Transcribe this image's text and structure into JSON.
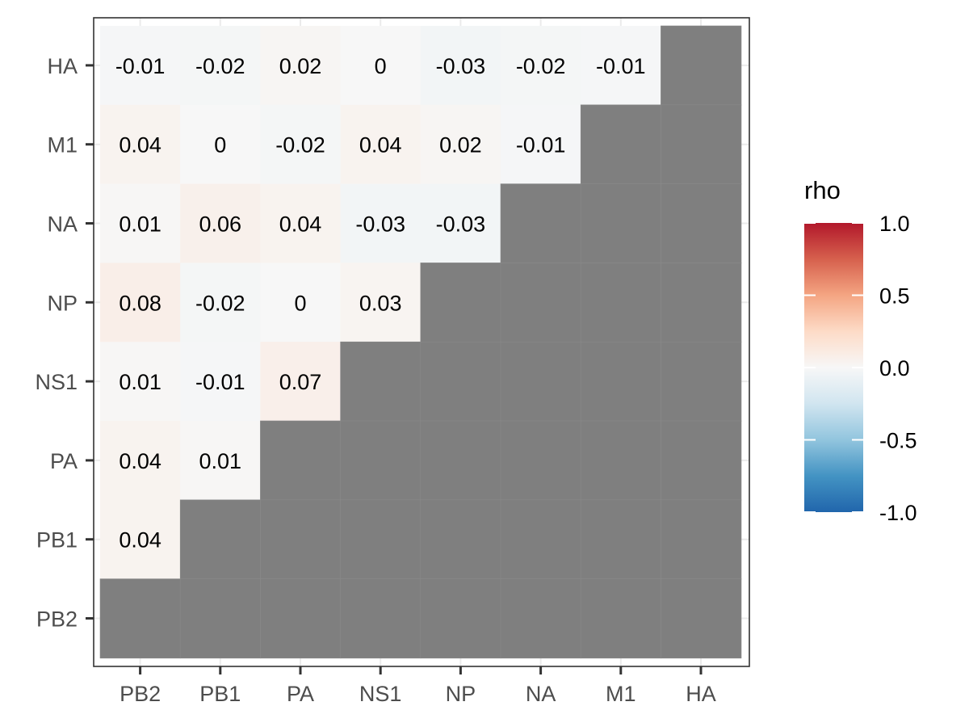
{
  "chart_data": {
    "type": "heatmap",
    "x_categories": [
      "PB2",
      "PB1",
      "PA",
      "NS1",
      "NP",
      "NA",
      "M1",
      "HA"
    ],
    "y_categories": [
      "HA",
      "M1",
      "NA",
      "NP",
      "NS1",
      "PA",
      "PB1",
      "PB2"
    ],
    "cells": [
      {
        "x": "PB2",
        "y": "HA",
        "value": -0.01,
        "label": "-0.01"
      },
      {
        "x": "PB1",
        "y": "HA",
        "value": -0.02,
        "label": "-0.02"
      },
      {
        "x": "PA",
        "y": "HA",
        "value": 0.02,
        "label": "0.02"
      },
      {
        "x": "NS1",
        "y": "HA",
        "value": 0,
        "label": "0"
      },
      {
        "x": "NP",
        "y": "HA",
        "value": -0.03,
        "label": "-0.03"
      },
      {
        "x": "NA",
        "y": "HA",
        "value": -0.02,
        "label": "-0.02"
      },
      {
        "x": "M1",
        "y": "HA",
        "value": -0.01,
        "label": "-0.01"
      },
      {
        "x": "PB2",
        "y": "M1",
        "value": 0.04,
        "label": "0.04"
      },
      {
        "x": "PB1",
        "y": "M1",
        "value": 0,
        "label": "0"
      },
      {
        "x": "PA",
        "y": "M1",
        "value": -0.02,
        "label": "-0.02"
      },
      {
        "x": "NS1",
        "y": "M1",
        "value": 0.04,
        "label": "0.04"
      },
      {
        "x": "NP",
        "y": "M1",
        "value": 0.02,
        "label": "0.02"
      },
      {
        "x": "NA",
        "y": "M1",
        "value": -0.01,
        "label": "-0.01"
      },
      {
        "x": "PB2",
        "y": "NA",
        "value": 0.01,
        "label": "0.01"
      },
      {
        "x": "PB1",
        "y": "NA",
        "value": 0.06,
        "label": "0.06"
      },
      {
        "x": "PA",
        "y": "NA",
        "value": 0.04,
        "label": "0.04"
      },
      {
        "x": "NS1",
        "y": "NA",
        "value": -0.03,
        "label": "-0.03"
      },
      {
        "x": "NP",
        "y": "NA",
        "value": -0.03,
        "label": "-0.03"
      },
      {
        "x": "PB2",
        "y": "NP",
        "value": 0.08,
        "label": "0.08"
      },
      {
        "x": "PB1",
        "y": "NP",
        "value": -0.02,
        "label": "-0.02"
      },
      {
        "x": "PA",
        "y": "NP",
        "value": 0,
        "label": "0"
      },
      {
        "x": "NS1",
        "y": "NP",
        "value": 0.03,
        "label": "0.03"
      },
      {
        "x": "PB2",
        "y": "NS1",
        "value": 0.01,
        "label": "0.01"
      },
      {
        "x": "PB1",
        "y": "NS1",
        "value": -0.01,
        "label": "-0.01"
      },
      {
        "x": "PA",
        "y": "NS1",
        "value": 0.07,
        "label": "0.07"
      },
      {
        "x": "PB2",
        "y": "PA",
        "value": 0.04,
        "label": "0.04"
      },
      {
        "x": "PB1",
        "y": "PA",
        "value": 0.01,
        "label": "0.01"
      },
      {
        "x": "PB2",
        "y": "PB1",
        "value": 0.04,
        "label": "0.04"
      }
    ],
    "missing_color": "#7f7f7f",
    "color_scale": {
      "title": "rho",
      "limits": [
        -1.0,
        1.0
      ],
      "breaks": [
        1.0,
        0.5,
        0.0,
        -0.5,
        -1.0
      ],
      "break_labels": [
        "1.0",
        "0.5",
        "0.0",
        "-0.5",
        "-1.0"
      ],
      "colors": [
        "#2166ac",
        "#4393c3",
        "#92c5de",
        "#d1e5f0",
        "#f7f7f7",
        "#fddbc7",
        "#f4a582",
        "#d6604d",
        "#b2182b"
      ]
    },
    "grid": true,
    "legend_position": "right"
  }
}
